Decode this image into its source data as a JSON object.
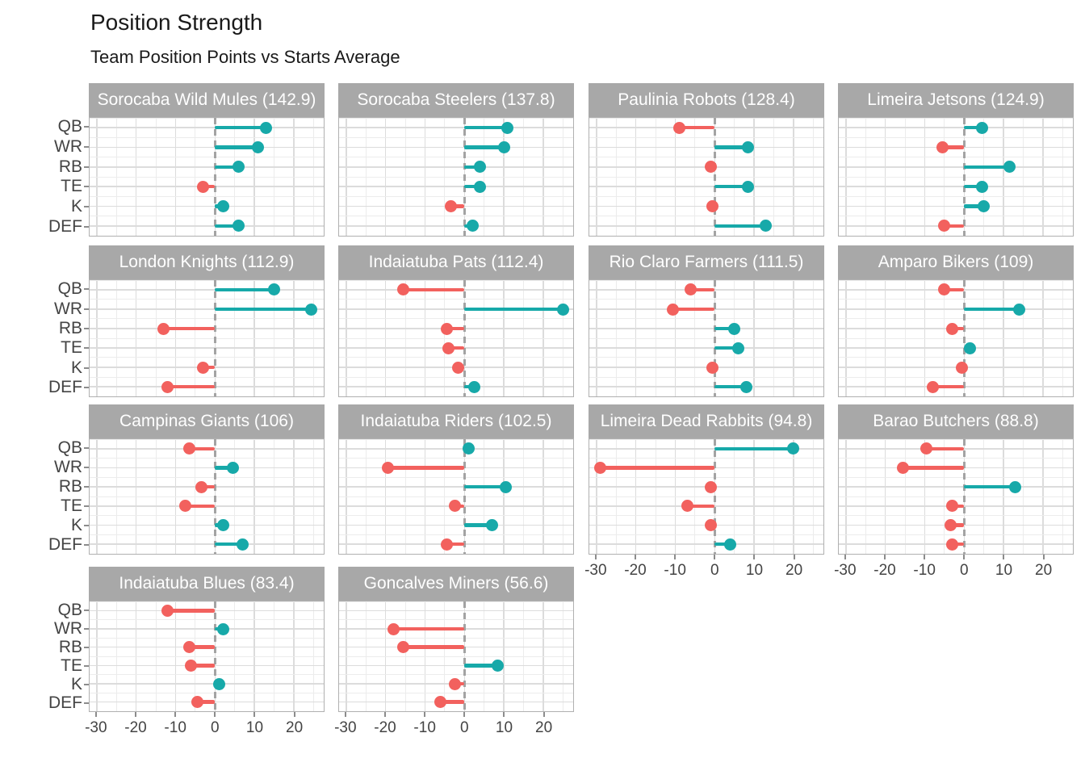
{
  "header": {
    "title": "Position Strength",
    "subtitle": "Team Position Points vs Starts Average"
  },
  "chart_data": {
    "type": "bar",
    "variant": "horizontal-lollipop-small-multiples",
    "title": "Position Strength",
    "subtitle": "Team Position Points vs Starts Average",
    "categories": [
      "QB",
      "WR",
      "RB",
      "TE",
      "K",
      "DEF"
    ],
    "x_ticks": [
      -30,
      -20,
      -10,
      0,
      10,
      20
    ],
    "xlim": [
      -31.8,
      27.6
    ],
    "grid": "on",
    "legend_position": "none",
    "zero_reference_line": 0,
    "colors": {
      "positive": "#17a9a9",
      "negative": "#f2615e",
      "strip_background": "#a8a8a8",
      "strip_text": "#ffffff",
      "grid_major": "#dcdcdc",
      "grid_minor": "#ececec",
      "panel_border": "#b0b0b0",
      "zero_line": "#a3a3a3",
      "axis_text": "#444444"
    },
    "facets": [
      {
        "label": "Sorocaba Wild Mules (142.9)",
        "values": [
          13,
          11,
          6,
          -3,
          2,
          6
        ]
      },
      {
        "label": "Sorocaba Steelers (137.8)",
        "values": [
          11,
          10,
          4,
          4,
          -3.5,
          2
        ]
      },
      {
        "label": "Paulinia Robots (128.4)",
        "values": [
          -9,
          8.5,
          -1,
          8.5,
          -0.5,
          13
        ]
      },
      {
        "label": "Limeira Jetsons (124.9)",
        "values": [
          4.5,
          -5.5,
          11.5,
          4.5,
          5,
          -5
        ]
      },
      {
        "label": "London Knights (112.9)",
        "values": [
          15,
          24.5,
          -13,
          null,
          -3,
          -12
        ]
      },
      {
        "label": "Indaiatuba Pats (112.4)",
        "values": [
          -15.5,
          25,
          -4.5,
          -4,
          -1.5,
          2.5
        ]
      },
      {
        "label": "Rio Claro Farmers (111.5)",
        "values": [
          -6,
          -10.5,
          5,
          6,
          -0.5,
          8
        ]
      },
      {
        "label": "Amparo Bikers (109)",
        "values": [
          -5,
          14,
          -3,
          1.5,
          -0.5,
          -8
        ]
      },
      {
        "label": "Campinas Giants (106)",
        "values": [
          -6.5,
          4.5,
          -3.5,
          -7.5,
          2,
          7
        ]
      },
      {
        "label": "Indaiatuba Riders (102.5)",
        "values": [
          1,
          -19.5,
          10.5,
          -2.5,
          7,
          -4.5
        ]
      },
      {
        "label": "Limeira Dead Rabbits (94.8)",
        "values": [
          20,
          -29,
          -1,
          -7,
          -1,
          4
        ]
      },
      {
        "label": "Barao Butchers (88.8)",
        "values": [
          -9.5,
          -15.5,
          13,
          -3,
          -3.5,
          -3
        ]
      },
      {
        "label": "Indaiatuba Blues (83.4)",
        "values": [
          -12,
          2,
          -6.5,
          -6,
          1,
          -4.5
        ]
      },
      {
        "label": "Goncalves Miners (56.6)",
        "values": [
          null,
          -18,
          -15.5,
          8.5,
          -2.5,
          -6
        ]
      }
    ],
    "facets_with_x_axis": [
      10,
      11,
      12,
      13
    ],
    "facets_with_y_axis": [
      0,
      4,
      8,
      12
    ]
  }
}
